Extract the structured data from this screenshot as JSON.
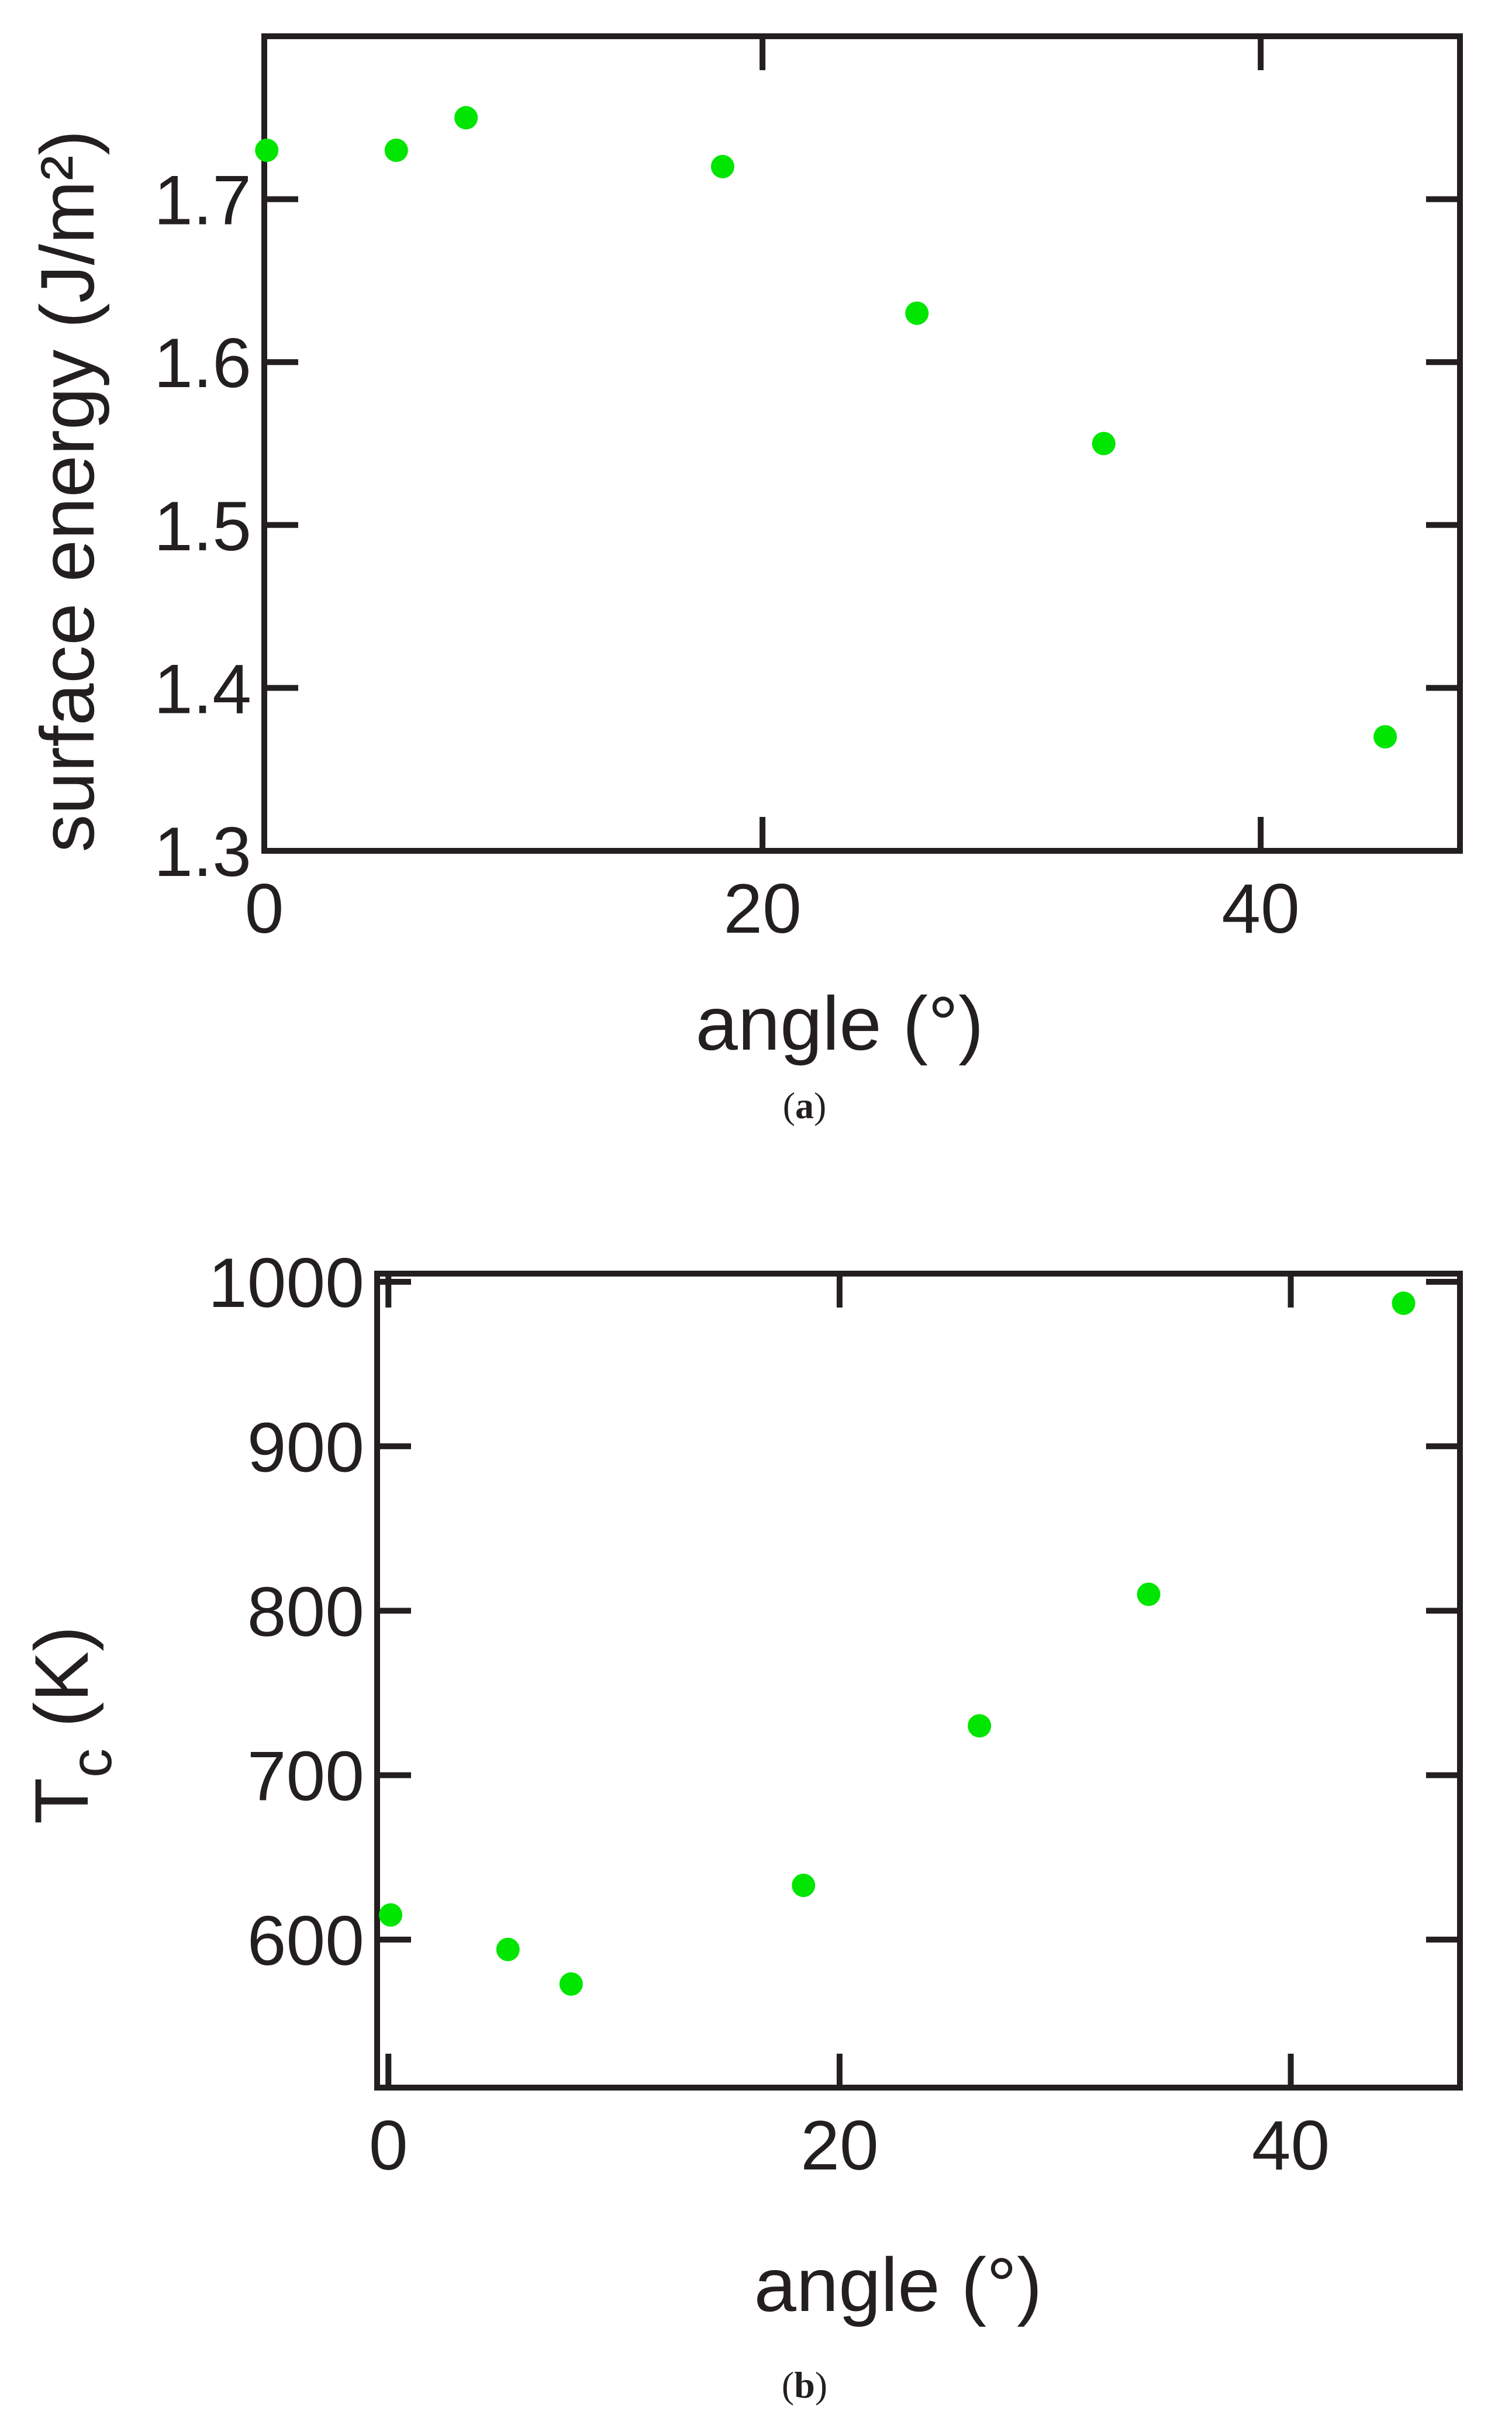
{
  "chart_data": [
    {
      "type": "scatter",
      "caption_open": "(",
      "caption_letter": "a",
      "caption_close": ")",
      "xlabel": "angle (°)",
      "ylabel": "surface energy (J/m²)",
      "xlim": [
        0,
        48
      ],
      "ylim": [
        1.3,
        1.8
      ],
      "xticks": [
        0,
        20,
        40
      ],
      "xtick_labels": [
        "0",
        "20",
        "40"
      ],
      "yticks": [
        1.3,
        1.4,
        1.5,
        1.6,
        1.7
      ],
      "ytick_labels": [
        "1.3",
        "1.4",
        "1.5",
        "1.6",
        "1.7"
      ],
      "grid": false,
      "marker_color": "#00e600",
      "points": [
        {
          "x": 0.1,
          "y": 1.73
        },
        {
          "x": 5.3,
          "y": 1.73
        },
        {
          "x": 8.1,
          "y": 1.75
        },
        {
          "x": 18.4,
          "y": 1.72
        },
        {
          "x": 26.2,
          "y": 1.63
        },
        {
          "x": 33.7,
          "y": 1.55
        },
        {
          "x": 45.0,
          "y": 1.37
        }
      ]
    },
    {
      "type": "scatter",
      "caption_open": "(",
      "caption_letter": "b",
      "caption_close": ")",
      "xlabel": "angle (°)",
      "ylabel_main": "T",
      "ylabel_sub": "c",
      "ylabel_unit": " (K)",
      "xlim": [
        -0.5,
        47.5
      ],
      "ylim": [
        510,
        1005
      ],
      "xticks": [
        0,
        20,
        40
      ],
      "xtick_labels": [
        "0",
        "20",
        "40"
      ],
      "yticks": [
        600,
        700,
        800,
        900,
        1000
      ],
      "ytick_labels": [
        "600",
        "700",
        "800",
        "900",
        "1000"
      ],
      "grid": false,
      "marker_color": "#00e600",
      "points": [
        {
          "x": 0.1,
          "y": 615
        },
        {
          "x": 5.3,
          "y": 594
        },
        {
          "x": 8.1,
          "y": 573
        },
        {
          "x": 18.4,
          "y": 633
        },
        {
          "x": 26.2,
          "y": 730
        },
        {
          "x": 33.7,
          "y": 810
        },
        {
          "x": 45.0,
          "y": 987
        }
      ]
    }
  ]
}
